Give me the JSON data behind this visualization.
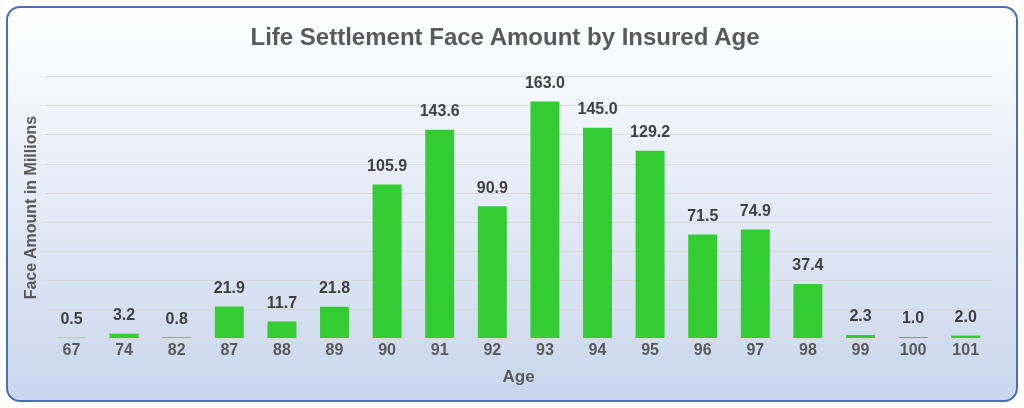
{
  "chart_data": {
    "type": "bar",
    "title": "Life Settlement Face Amount by Insured Age",
    "xlabel": "Age",
    "ylabel": "Face Amount in Millions",
    "categories": [
      "67",
      "74",
      "82",
      "87",
      "88",
      "89",
      "90",
      "91",
      "92",
      "93",
      "94",
      "95",
      "96",
      "97",
      "98",
      "99",
      "100",
      "101"
    ],
    "values": [
      0.5,
      3.2,
      0.8,
      21.9,
      11.7,
      21.8,
      105.9,
      143.6,
      90.9,
      163.0,
      145.0,
      129.2,
      71.5,
      74.9,
      37.4,
      2.3,
      1.0,
      2.0
    ],
    "value_labels": [
      "0.5",
      "3.2",
      "0.8",
      "21.9",
      "11.7",
      "21.8",
      "105.9",
      "143.6",
      "90.9",
      "163.0",
      "145.0",
      "129.2",
      "71.5",
      "74.9",
      "37.4",
      "2.3",
      "1.0",
      "2.0"
    ],
    "color": "#33cc33",
    "ylim": [
      0,
      180
    ],
    "yticks": [
      {
        "value": 0,
        "label": null
      },
      {
        "value": 20,
        "label": null
      },
      {
        "value": 40,
        "label": null
      },
      {
        "value": 60,
        "label": null
      },
      {
        "value": 80,
        "label": null
      },
      {
        "value": 100,
        "label": null
      },
      {
        "value": 120,
        "label": null
      },
      {
        "value": 140,
        "label": null
      },
      {
        "value": 160,
        "label": null
      },
      {
        "value": 180,
        "label": null
      }
    ],
    "tick_labels": "x",
    "grid": "y",
    "legend": false
  }
}
